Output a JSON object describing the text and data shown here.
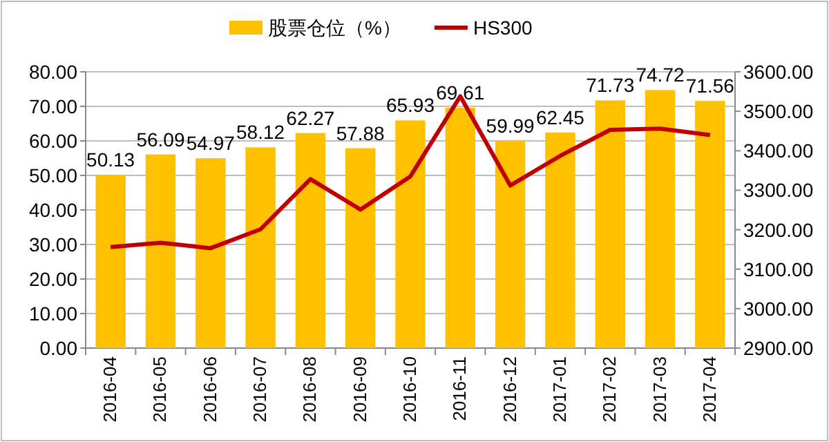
{
  "chart_data": {
    "type": "bar",
    "categories": [
      "2016-04",
      "2016-05",
      "2016-06",
      "2016-07",
      "2016-08",
      "2016-09",
      "2016-10",
      "2016-11",
      "2016-12",
      "2017-01",
      "2017-02",
      "2017-03",
      "2017-04"
    ],
    "series": [
      {
        "name": "股票仓位（%）",
        "color": "#ffc000",
        "values": [
          50.13,
          56.09,
          54.97,
          58.12,
          62.27,
          57.88,
          65.93,
          69.61,
          59.99,
          62.45,
          71.73,
          74.72,
          71.56
        ],
        "data_labels": true
      },
      {
        "name": "HS300",
        "type": "line",
        "axis": "y2",
        "color": "#c00000",
        "values": [
          3156,
          3167,
          3153,
          3201,
          3328,
          3251,
          3335,
          3538,
          3312,
          3387,
          3453,
          3456,
          3440
        ]
      }
    ],
    "ylim": [
      0,
      80
    ],
    "yticks": [
      {
        "value": 0,
        "label": "0.00"
      },
      {
        "value": 10,
        "label": "10.00"
      },
      {
        "value": 20,
        "label": "20.00"
      },
      {
        "value": 30,
        "label": "30.00"
      },
      {
        "value": 40,
        "label": "40.00"
      },
      {
        "value": 50,
        "label": "50.00"
      },
      {
        "value": 60,
        "label": "60.00"
      },
      {
        "value": 70,
        "label": "70.00"
      },
      {
        "value": 80,
        "label": "80.00"
      }
    ],
    "y2lim": [
      2900,
      3600
    ],
    "y2ticks": [
      {
        "value": 2900,
        "label": "2900.00"
      },
      {
        "value": 3000,
        "label": "3000.00"
      },
      {
        "value": 3100,
        "label": "3100.00"
      },
      {
        "value": 3200,
        "label": "3200.00"
      },
      {
        "value": 3300,
        "label": "3300.00"
      },
      {
        "value": 3400,
        "label": "3400.00"
      },
      {
        "value": 3500,
        "label": "3500.00"
      },
      {
        "value": 3600,
        "label": "3600.00"
      }
    ],
    "grid": "y",
    "legend": "top",
    "marker": "none"
  }
}
